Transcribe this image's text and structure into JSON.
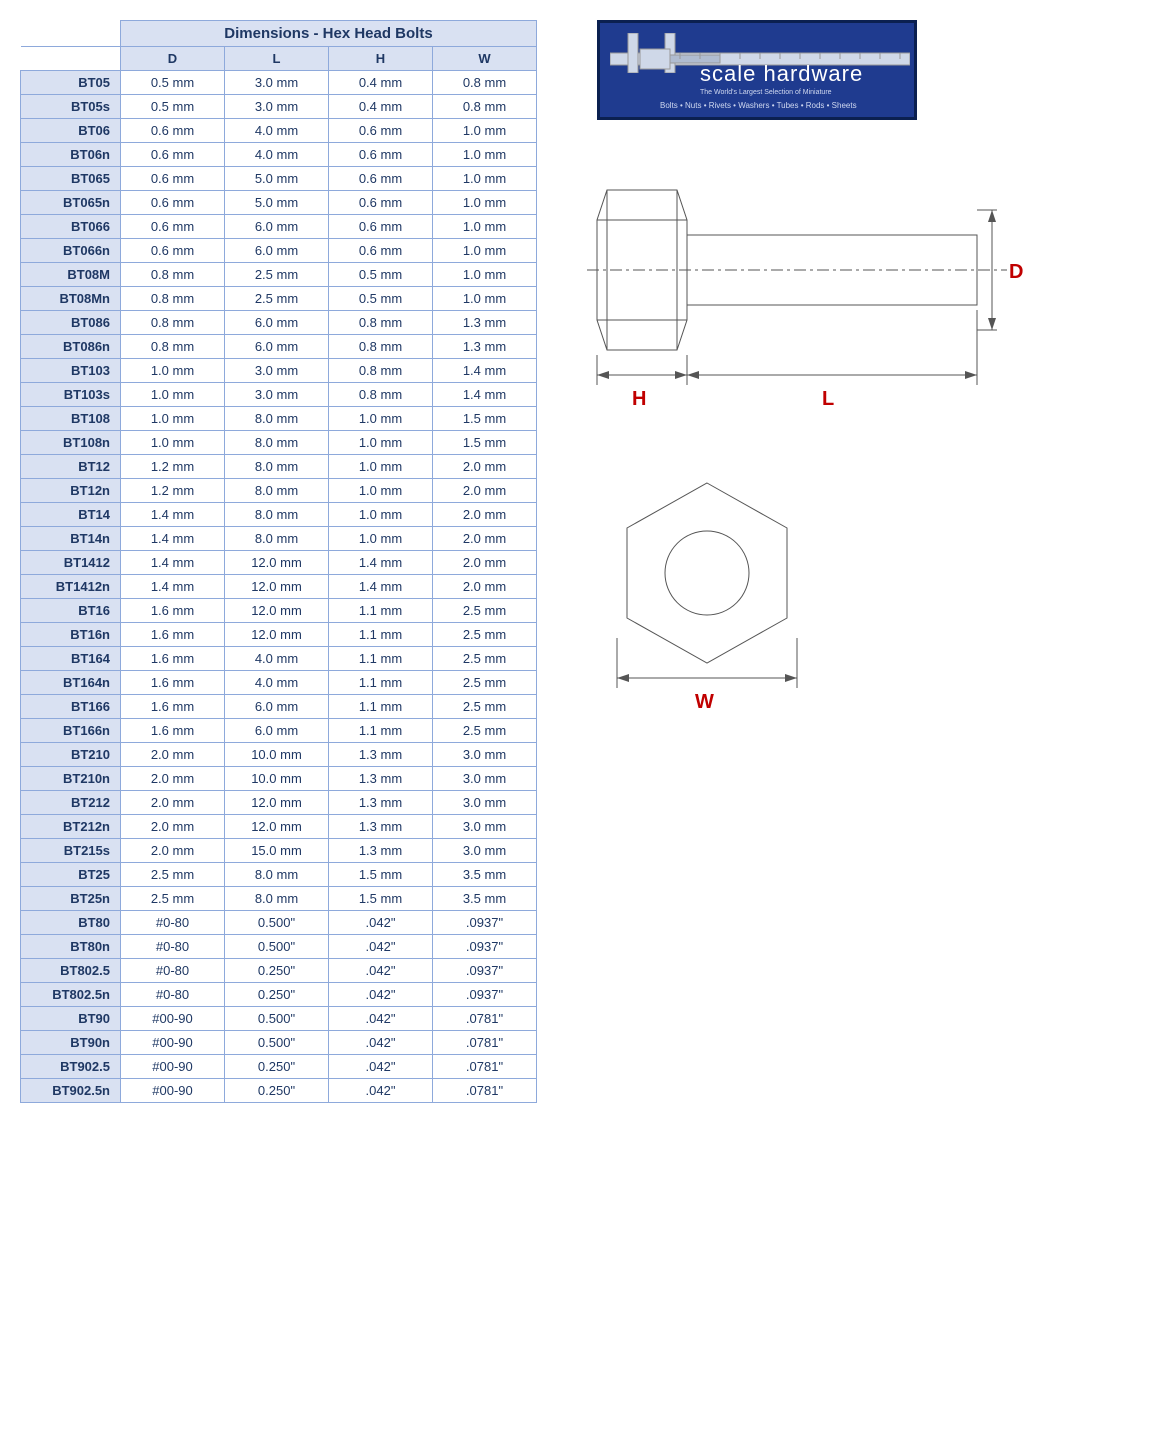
{
  "table": {
    "title": "Dimensions - Hex Head Bolts",
    "columns": [
      "D",
      "L",
      "H",
      "W"
    ],
    "rows": [
      {
        "id": "BT05",
        "D": "0.5 mm",
        "L": "3.0 mm",
        "H": "0.4 mm",
        "W": "0.8 mm"
      },
      {
        "id": "BT05s",
        "D": "0.5 mm",
        "L": "3.0 mm",
        "H": "0.4 mm",
        "W": "0.8 mm"
      },
      {
        "id": "BT06",
        "D": "0.6 mm",
        "L": "4.0 mm",
        "H": "0.6 mm",
        "W": "1.0 mm"
      },
      {
        "id": "BT06n",
        "D": "0.6 mm",
        "L": "4.0 mm",
        "H": "0.6 mm",
        "W": "1.0 mm"
      },
      {
        "id": "BT065",
        "D": "0.6 mm",
        "L": "5.0 mm",
        "H": "0.6 mm",
        "W": "1.0 mm"
      },
      {
        "id": "BT065n",
        "D": "0.6 mm",
        "L": "5.0 mm",
        "H": "0.6 mm",
        "W": "1.0 mm"
      },
      {
        "id": "BT066",
        "D": "0.6 mm",
        "L": "6.0 mm",
        "H": "0.6 mm",
        "W": "1.0 mm"
      },
      {
        "id": "BT066n",
        "D": "0.6 mm",
        "L": "6.0 mm",
        "H": "0.6 mm",
        "W": "1.0 mm"
      },
      {
        "id": "BT08M",
        "D": "0.8 mm",
        "L": "2.5 mm",
        "H": "0.5 mm",
        "W": "1.0 mm"
      },
      {
        "id": "BT08Mn",
        "D": "0.8 mm",
        "L": "2.5 mm",
        "H": "0.5 mm",
        "W": "1.0 mm"
      },
      {
        "id": "BT086",
        "D": "0.8 mm",
        "L": "6.0 mm",
        "H": "0.8 mm",
        "W": "1.3 mm"
      },
      {
        "id": "BT086n",
        "D": "0.8 mm",
        "L": "6.0 mm",
        "H": "0.8 mm",
        "W": "1.3 mm"
      },
      {
        "id": "BT103",
        "D": "1.0 mm",
        "L": "3.0 mm",
        "H": "0.8 mm",
        "W": "1.4 mm"
      },
      {
        "id": "BT103s",
        "D": "1.0 mm",
        "L": "3.0 mm",
        "H": "0.8 mm",
        "W": "1.4 mm"
      },
      {
        "id": "BT108",
        "D": "1.0 mm",
        "L": "8.0 mm",
        "H": "1.0 mm",
        "W": "1.5 mm"
      },
      {
        "id": "BT108n",
        "D": "1.0 mm",
        "L": "8.0 mm",
        "H": "1.0 mm",
        "W": "1.5 mm"
      },
      {
        "id": "BT12",
        "D": "1.2 mm",
        "L": "8.0 mm",
        "H": "1.0 mm",
        "W": "2.0 mm"
      },
      {
        "id": "BT12n",
        "D": "1.2 mm",
        "L": "8.0 mm",
        "H": "1.0 mm",
        "W": "2.0 mm"
      },
      {
        "id": "BT14",
        "D": "1.4 mm",
        "L": "8.0 mm",
        "H": "1.0 mm",
        "W": "2.0 mm"
      },
      {
        "id": "BT14n",
        "D": "1.4 mm",
        "L": "8.0 mm",
        "H": "1.0 mm",
        "W": "2.0 mm"
      },
      {
        "id": "BT1412",
        "D": "1.4 mm",
        "L": "12.0 mm",
        "H": "1.4 mm",
        "W": "2.0 mm"
      },
      {
        "id": "BT1412n",
        "D": "1.4 mm",
        "L": "12.0 mm",
        "H": "1.4 mm",
        "W": "2.0 mm"
      },
      {
        "id": "BT16",
        "D": "1.6 mm",
        "L": "12.0 mm",
        "H": "1.1 mm",
        "W": "2.5 mm"
      },
      {
        "id": "BT16n",
        "D": "1.6 mm",
        "L": "12.0 mm",
        "H": "1.1 mm",
        "W": "2.5 mm"
      },
      {
        "id": "BT164",
        "D": "1.6 mm",
        "L": "4.0 mm",
        "H": "1.1 mm",
        "W": "2.5 mm"
      },
      {
        "id": "BT164n",
        "D": "1.6 mm",
        "L": "4.0 mm",
        "H": "1.1 mm",
        "W": "2.5 mm"
      },
      {
        "id": "BT166",
        "D": "1.6 mm",
        "L": "6.0 mm",
        "H": "1.1 mm",
        "W": "2.5 mm"
      },
      {
        "id": "BT166n",
        "D": "1.6 mm",
        "L": "6.0 mm",
        "H": "1.1 mm",
        "W": "2.5 mm"
      },
      {
        "id": "BT210",
        "D": "2.0 mm",
        "L": "10.0 mm",
        "H": "1.3 mm",
        "W": "3.0 mm"
      },
      {
        "id": "BT210n",
        "D": "2.0 mm",
        "L": "10.0 mm",
        "H": "1.3 mm",
        "W": "3.0 mm"
      },
      {
        "id": "BT212",
        "D": "2.0 mm",
        "L": "12.0 mm",
        "H": "1.3 mm",
        "W": "3.0 mm"
      },
      {
        "id": "BT212n",
        "D": "2.0 mm",
        "L": "12.0 mm",
        "H": "1.3 mm",
        "W": "3.0 mm"
      },
      {
        "id": "BT215s",
        "D": "2.0 mm",
        "L": "15.0 mm",
        "H": "1.3 mm",
        "W": "3.0 mm"
      },
      {
        "id": "BT25",
        "D": "2.5 mm",
        "L": "8.0 mm",
        "H": "1.5 mm",
        "W": "3.5 mm"
      },
      {
        "id": "BT25n",
        "D": "2.5 mm",
        "L": "8.0 mm",
        "H": "1.5 mm",
        "W": "3.5 mm"
      },
      {
        "id": "BT80",
        "D": "#0-80",
        "L": "0.500\"",
        "H": ".042\"",
        "W": ".0937\""
      },
      {
        "id": "BT80n",
        "D": "#0-80",
        "L": "0.500\"",
        "H": ".042\"",
        "W": ".0937\""
      },
      {
        "id": "BT802.5",
        "D": "#0-80",
        "L": "0.250\"",
        "H": ".042\"",
        "W": ".0937\""
      },
      {
        "id": "BT802.5n",
        "D": "#0-80",
        "L": "0.250\"",
        "H": ".042\"",
        "W": ".0937\""
      },
      {
        "id": "BT90",
        "D": "#00-90",
        "L": "0.500\"",
        "H": ".042\"",
        "W": ".0781\""
      },
      {
        "id": "BT90n",
        "D": "#00-90",
        "L": "0.500\"",
        "H": ".042\"",
        "W": ".0781\""
      },
      {
        "id": "BT902.5",
        "D": "#00-90",
        "L": "0.250\"",
        "H": ".042\"",
        "W": ".0781\""
      },
      {
        "id": "BT902.5n",
        "D": "#00-90",
        "L": "0.250\"",
        "H": ".042\"",
        "W": ".0781\""
      }
    ]
  },
  "logo": {
    "brand": "scale hardware",
    "tagline1": "The World's Largest Selection of Miniature",
    "tagline2": "Bolts • Nuts • Rivets • Washers • Tubes • Rods • Sheets"
  },
  "diagram": {
    "labels": {
      "D": "D",
      "L": "L",
      "H": "H",
      "W": "W"
    },
    "stroke_color": "#555555",
    "label_color": "#c00000",
    "centerline_color": "#555555"
  },
  "style": {
    "header_bg": "#d9e1f2",
    "border_color": "#8ea9db",
    "text_color": "#1f3864"
  }
}
